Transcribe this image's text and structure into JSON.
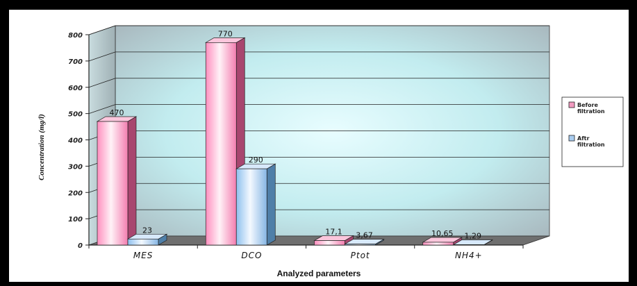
{
  "chart_data": {
    "type": "bar",
    "title": "",
    "xlabel": "Analyzed parameters",
    "ylabel": "Concentration (mg/l)",
    "ylim": [
      0,
      800
    ],
    "yticks": [
      "0",
      "100",
      "200",
      "300",
      "400",
      "500",
      "600",
      "700",
      "800"
    ],
    "categories": [
      "MES",
      "DCO",
      "Ptot",
      "NH4+"
    ],
    "grid": true,
    "legend_position": "right",
    "series": [
      {
        "name": "Before filtration",
        "legend_lines": [
          "Before",
          "filtration"
        ],
        "values": [
          470,
          770,
          17.1,
          10.65
        ],
        "labels": [
          "470",
          "770",
          "17,1",
          "10,65"
        ],
        "color": "#f29bc0"
      },
      {
        "name": "Aftr filtration",
        "legend_lines": [
          "Aftr",
          "filtration"
        ],
        "values": [
          23,
          290,
          3.67,
          1.29
        ],
        "labels": [
          "23",
          "290",
          "3,67",
          "1,29"
        ],
        "color": "#a9cdf0"
      }
    ]
  }
}
